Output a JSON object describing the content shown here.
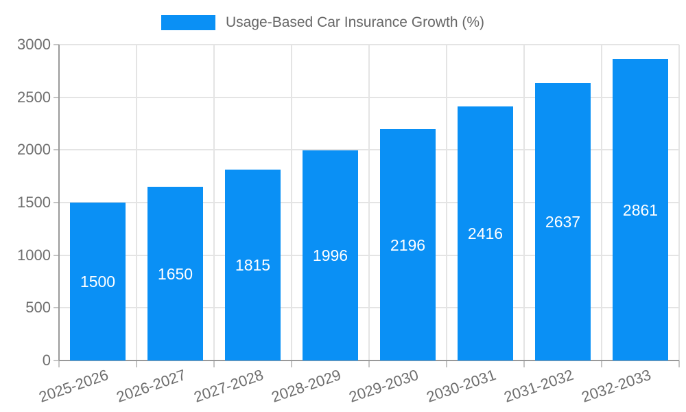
{
  "chart_data": {
    "type": "bar",
    "title": "Usage-Based Car Insurance Growth (%)",
    "legend": {
      "entries": [
        "Usage-Based Car Insurance Growth (%)"
      ],
      "position": "top-center"
    },
    "categories": [
      "2025-2026",
      "2026-2027",
      "2027-2028",
      "2028-2029",
      "2029-2030",
      "2030-2031",
      "2031-2032",
      "2032-2033"
    ],
    "values": [
      1500,
      1650,
      1815,
      1996,
      2196,
      2416,
      2637,
      2861
    ],
    "value_labels_shown": true,
    "xlabel": "",
    "ylabel": "",
    "ylim": [
      0,
      3000
    ],
    "ytick_step": 500,
    "yticks": [
      0,
      500,
      1000,
      1500,
      2000,
      2500,
      3000
    ],
    "grid": true,
    "xtick_rotation_deg": -19,
    "colors": {
      "bar": "#0a90f5",
      "value_label": "#ffffff",
      "axis_line": "#999999",
      "grid_line": "#e4e4e4",
      "tick_mark": "#c4c4c4",
      "tick_label": "#6e6e6e",
      "legend_text": "#666666",
      "background": "#ffffff"
    }
  }
}
